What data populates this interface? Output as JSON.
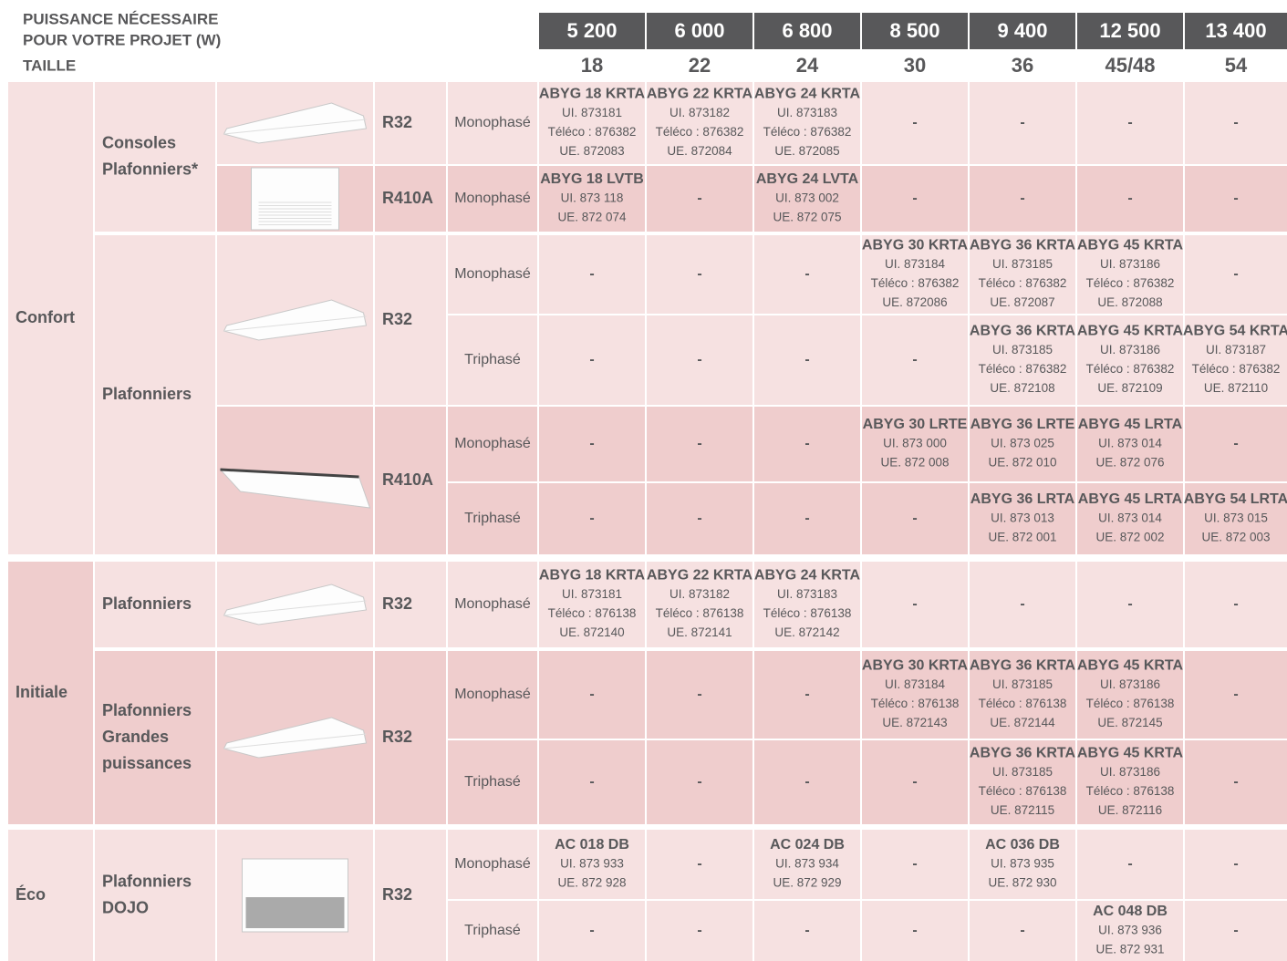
{
  "header": {
    "power_label": [
      "PUISSANCE NÉCESSAIRE",
      "POUR VOTRE PROJET (W)"
    ],
    "size_label": "TAILLE",
    "powers": [
      "5 200",
      "6 000",
      "6 800",
      "8 500",
      "9 400",
      "12 500",
      "13 400"
    ],
    "sizes": [
      "18",
      "22",
      "24",
      "30",
      "36",
      "45/48",
      "54"
    ]
  },
  "ranges": [
    {
      "label": "Confort",
      "groups": [
        {
          "family": [
            "Consoles",
            "Plafonniers*"
          ],
          "refrigerants": [
            {
              "name": "R32",
              "rows": [
                {
                  "phase": "Monophasé",
                  "cells": [
                    [
                      "ABYG 18 KRTA",
                      "UI. 873181",
                      "Téléco : 876382",
                      "UE. 872083"
                    ],
                    [
                      "ABYG 22 KRTA",
                      "UI. 873182",
                      "Téléco : 876382",
                      "UE. 872084"
                    ],
                    [
                      "ABYG 24 KRTA",
                      "UI. 873183",
                      "Téléco : 876382",
                      "UE. 872085"
                    ],
                    [
                      "-"
                    ],
                    [
                      "-"
                    ],
                    [
                      "-"
                    ],
                    [
                      "-"
                    ]
                  ]
                }
              ]
            },
            {
              "name": "R410A",
              "rows": [
                {
                  "phase": "Monophasé",
                  "cells": [
                    [
                      "ABYG 18 LVTB",
                      "UI. 873 118",
                      "UE. 872 074"
                    ],
                    [
                      "-"
                    ],
                    [
                      "ABYG 24 LVTA",
                      "UI. 873 002",
                      "UE. 872 075"
                    ],
                    [
                      "-"
                    ],
                    [
                      "-"
                    ],
                    [
                      "-"
                    ],
                    [
                      "-"
                    ]
                  ]
                }
              ]
            }
          ]
        },
        {
          "family": [
            "Plafonniers"
          ],
          "refrigerants": [
            {
              "name": "R32",
              "rows": [
                {
                  "phase": "Monophasé",
                  "cells": [
                    [
                      "-"
                    ],
                    [
                      "-"
                    ],
                    [
                      "-"
                    ],
                    [
                      "ABYG 30 KRTA",
                      "UI. 873184",
                      "Téléco : 876382",
                      "UE. 872086"
                    ],
                    [
                      "ABYG 36 KRTA",
                      "UI. 873185",
                      "Téléco : 876382",
                      "UE. 872087"
                    ],
                    [
                      "ABYG 45 KRTA",
                      "UI. 873186",
                      "Téléco : 876382",
                      "UE. 872088"
                    ],
                    [
                      "-"
                    ]
                  ]
                },
                {
                  "phase": "Triphasé",
                  "cells": [
                    [
                      "-"
                    ],
                    [
                      "-"
                    ],
                    [
                      "-"
                    ],
                    [
                      "-"
                    ],
                    [
                      "ABYG 36 KRTA",
                      "UI. 873185",
                      "Téléco : 876382",
                      "UE. 872108"
                    ],
                    [
                      "ABYG 45 KRTA",
                      "UI. 873186",
                      "Téléco : 876382",
                      "UE. 872109"
                    ],
                    [
                      "ABYG 54 KRTA",
                      "UI. 873187",
                      "Téléco : 876382",
                      "UE. 872110"
                    ]
                  ]
                }
              ]
            },
            {
              "name": "R410A",
              "rows": [
                {
                  "phase": "Monophasé",
                  "cells": [
                    [
                      "-"
                    ],
                    [
                      "-"
                    ],
                    [
                      "-"
                    ],
                    [
                      "ABYG 30 LRTE",
                      "UI. 873 000",
                      "UE. 872 008"
                    ],
                    [
                      "ABYG 36 LRTE",
                      "UI. 873 025",
                      "UE. 872 010"
                    ],
                    [
                      "ABYG 45 LRTA",
                      "UI. 873 014",
                      "UE. 872 076"
                    ],
                    [
                      "-"
                    ]
                  ]
                },
                {
                  "phase": "Triphasé",
                  "cells": [
                    [
                      "-"
                    ],
                    [
                      "-"
                    ],
                    [
                      "-"
                    ],
                    [
                      "-"
                    ],
                    [
                      "ABYG 36 LRTA",
                      "UI. 873 013",
                      "UE. 872 001"
                    ],
                    [
                      "ABYG 45 LRTA",
                      "UI. 873 014",
                      "UE. 872 002"
                    ],
                    [
                      "ABYG 54 LRTA",
                      "UI. 873 015",
                      "UE. 872 003"
                    ]
                  ]
                }
              ]
            }
          ]
        }
      ]
    },
    {
      "label": "Initiale",
      "groups": [
        {
          "family": [
            "Plafonniers"
          ],
          "refrigerants": [
            {
              "name": "R32",
              "rows": [
                {
                  "phase": "Monophasé",
                  "cells": [
                    [
                      "ABYG 18 KRTA",
                      "UI. 873181",
                      "Téléco : 876138",
                      "UE. 872140"
                    ],
                    [
                      "ABYG 22 KRTA",
                      "UI. 873182",
                      "Téléco : 876138",
                      "UE. 872141"
                    ],
                    [
                      "ABYG 24 KRTA",
                      "UI. 873183",
                      "Téléco : 876138",
                      "UE. 872142"
                    ],
                    [
                      "-"
                    ],
                    [
                      "-"
                    ],
                    [
                      "-"
                    ],
                    [
                      "-"
                    ]
                  ]
                }
              ]
            }
          ]
        },
        {
          "family": [
            "Plafonniers",
            "Grandes",
            "puissances"
          ],
          "refrigerants": [
            {
              "name": "R32",
              "rows": [
                {
                  "phase": "Monophasé",
                  "cells": [
                    [
                      "-"
                    ],
                    [
                      "-"
                    ],
                    [
                      "-"
                    ],
                    [
                      "ABYG 30 KRTA",
                      "UI. 873184",
                      "Téléco : 876138",
                      "UE. 872143"
                    ],
                    [
                      "ABYG 36 KRTA",
                      "UI. 873185",
                      "Téléco : 876138",
                      "UE. 872144"
                    ],
                    [
                      "ABYG 45 KRTA",
                      "UI. 873186",
                      "Téléco : 876138",
                      "UE. 872145"
                    ],
                    [
                      "-"
                    ]
                  ]
                },
                {
                  "phase": "Triphasé",
                  "cells": [
                    [
                      "-"
                    ],
                    [
                      "-"
                    ],
                    [
                      "-"
                    ],
                    [
                      "-"
                    ],
                    [
                      "ABYG 36 KRTA",
                      "UI. 873185",
                      "Téléco : 876138",
                      "UE. 872115"
                    ],
                    [
                      "ABYG 45 KRTA",
                      "UI. 873186",
                      "Téléco : 876138",
                      "UE. 872116"
                    ],
                    [
                      "-"
                    ]
                  ]
                }
              ]
            }
          ]
        }
      ]
    },
    {
      "label": "Éco",
      "groups": [
        {
          "family": [
            "Plafonniers",
            "DOJO"
          ],
          "refrigerants": [
            {
              "name": "R32",
              "rows": [
                {
                  "phase": "Monophasé",
                  "cells": [
                    [
                      "AC 018 DB",
                      "UI. 873 933",
                      "UE. 872 928"
                    ],
                    [
                      "-"
                    ],
                    [
                      "AC 024 DB",
                      "UI. 873 934",
                      "UE. 872 929"
                    ],
                    [
                      "-"
                    ],
                    [
                      "AC 036 DB",
                      "UI. 873 935",
                      "UE. 872 930"
                    ],
                    [
                      "-"
                    ],
                    [
                      "-"
                    ]
                  ]
                },
                {
                  "phase": "Triphasé",
                  "cells": [
                    [
                      "-"
                    ],
                    [
                      "-"
                    ],
                    [
                      "-"
                    ],
                    [
                      "-"
                    ],
                    [
                      "-"
                    ],
                    [
                      "AC 048 DB",
                      "UI. 873 936",
                      "UE. 872 931"
                    ],
                    [
                      "-"
                    ]
                  ]
                }
              ]
            }
          ]
        }
      ]
    }
  ]
}
